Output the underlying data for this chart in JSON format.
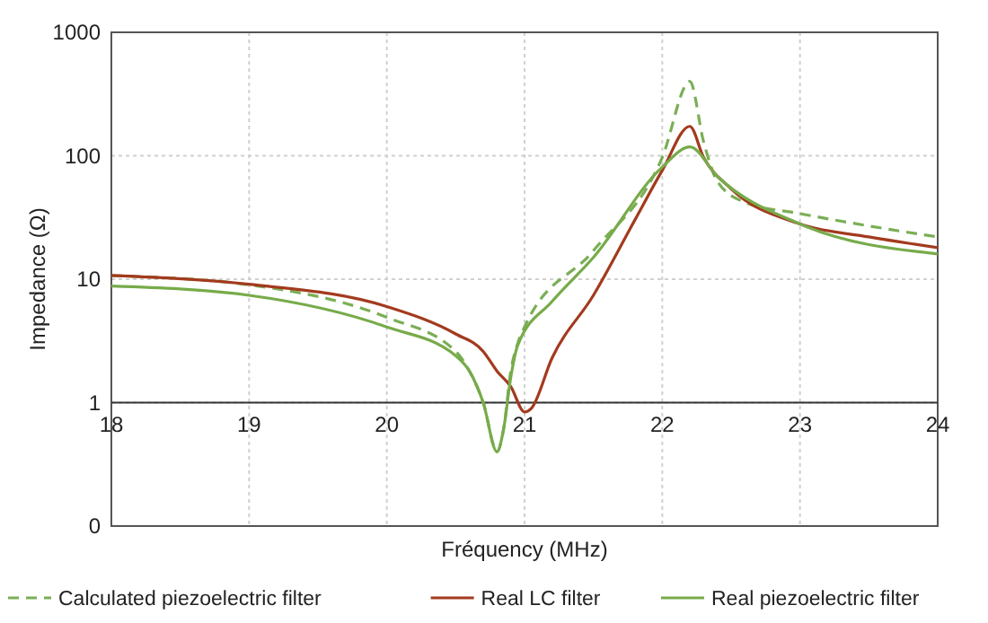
{
  "chart_data": {
    "type": "line",
    "xlabel": "Fréquency (MHz)",
    "ylabel": "Impedance (Ω)",
    "log": "y",
    "xlim": [
      18,
      24
    ],
    "xticks": [
      18,
      19,
      20,
      21,
      22,
      23,
      24
    ],
    "ylim": [
      0.1,
      1000
    ],
    "yticks": [
      {
        "value": 0.1,
        "label": "0"
      },
      1,
      10,
      100,
      1000
    ],
    "grid": true,
    "legend": "bottom",
    "series": [
      {
        "name": "Calculated piezoelectric filter",
        "color": "#7aae55",
        "line_style": "dashed",
        "x": [
          18,
          19,
          20,
          20.5,
          20.6,
          20.7,
          20.8,
          20.85,
          20.9,
          20.95,
          21,
          21.5,
          22,
          22.2,
          22.3,
          22.4,
          22.6,
          23,
          23.5,
          24
        ],
        "values": [
          10.7,
          9,
          4.9,
          2.6,
          1.8,
          1.0,
          0.4,
          0.63,
          1.8,
          3.0,
          4.1,
          17,
          97,
          400,
          130,
          62,
          42,
          34,
          27,
          22
        ]
      },
      {
        "name": "Real LC filter",
        "color": "#a33a1e",
        "line_style": "solid",
        "x": [
          18,
          19,
          20,
          20.5,
          20.7,
          20.8,
          20.9,
          21,
          21.05,
          21.2,
          21.5,
          21.8,
          22,
          22.2,
          22.3,
          22.5,
          23,
          23.5,
          24
        ],
        "values": [
          10.7,
          9.1,
          6,
          3.6,
          2.6,
          1.8,
          1.35,
          0.84,
          0.9,
          2.3,
          7.4,
          30,
          76,
          173,
          97,
          54,
          28,
          22,
          18
        ]
      },
      {
        "name": "Real piezoelectric filter",
        "color": "#77ab4a",
        "line_style": "solid",
        "x": [
          18,
          19,
          20,
          20.5,
          20.6,
          20.7,
          20.8,
          20.85,
          20.9,
          20.95,
          21.2,
          21.5,
          22,
          22.2,
          22.4,
          23,
          24
        ],
        "values": [
          8.8,
          7.4,
          4.1,
          2.4,
          1.8,
          1.0,
          0.4,
          0.63,
          1.6,
          2.9,
          6.6,
          15,
          81,
          118,
          68,
          28,
          16
        ]
      }
    ]
  }
}
